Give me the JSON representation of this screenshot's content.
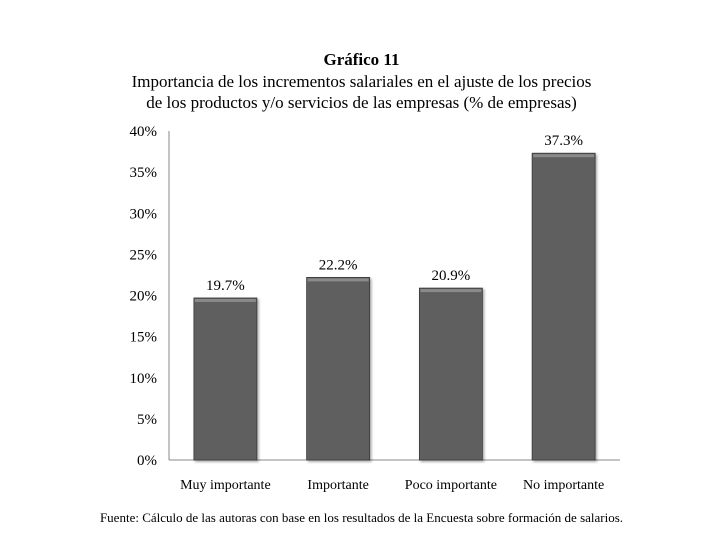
{
  "chart_data": {
    "type": "bar",
    "title": "Gráfico 11",
    "subtitle": [
      "Importancia de los incrementos salariales en el ajuste de los precios",
      "de los productos y/o servicios de las empresas (% de empresas)"
    ],
    "categories": [
      "Muy importante",
      "Importante",
      "Poco importante",
      "No importante"
    ],
    "values": [
      19.7,
      22.2,
      20.9,
      37.3
    ],
    "data_labels": [
      "19.7%",
      "22.2%",
      "20.9%",
      "37.3%"
    ],
    "ylim": [
      0,
      40
    ],
    "yticks": [
      0,
      5,
      10,
      15,
      20,
      25,
      30,
      35,
      40
    ],
    "ytick_labels": [
      "0%",
      "5%",
      "10%",
      "15%",
      "20%",
      "25%",
      "30%",
      "35%",
      "40%"
    ],
    "xlabel": "",
    "ylabel": "",
    "grid": false,
    "bar_color": "#5f5f5f",
    "source": "Fuente: Cálculo de las autoras con base en los resultados de la Encuesta sobre formación de salarios."
  }
}
